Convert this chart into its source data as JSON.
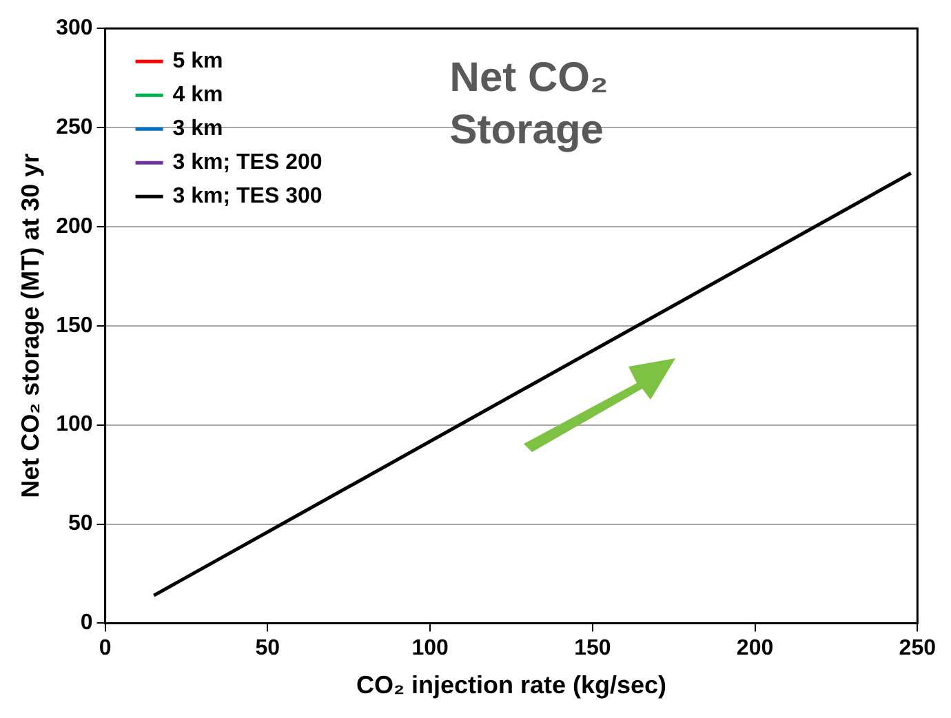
{
  "chart_data": {
    "type": "line",
    "xlabel": "CO₂ injection rate (kg/sec)",
    "ylabel": "Net CO₂ storage (MT) at 30 yr",
    "annotations": [
      "Net CO₂ Storage"
    ],
    "series": [
      {
        "name": "5 km",
        "color": "#ff0000"
      },
      {
        "name": "4 km",
        "color": "#00b050"
      },
      {
        "name": "3 km",
        "color": "#0070c0"
      },
      {
        "name": "3 km; TES 200",
        "color": "#7030a0"
      },
      {
        "name": "3 km; TES 300",
        "color": "#000000",
        "x": [
          15,
          248
        ],
        "values": [
          14,
          227
        ]
      }
    ],
    "xlim": [
      0,
      250
    ],
    "xticks": [
      0,
      50,
      100,
      150,
      200,
      250
    ],
    "ylim": [
      0,
      300
    ],
    "yticks": [
      0,
      50,
      100,
      150,
      200,
      250,
      300
    ],
    "grid": "y",
    "legend": "top left",
    "marker": "none",
    "line_style": "solid"
  }
}
